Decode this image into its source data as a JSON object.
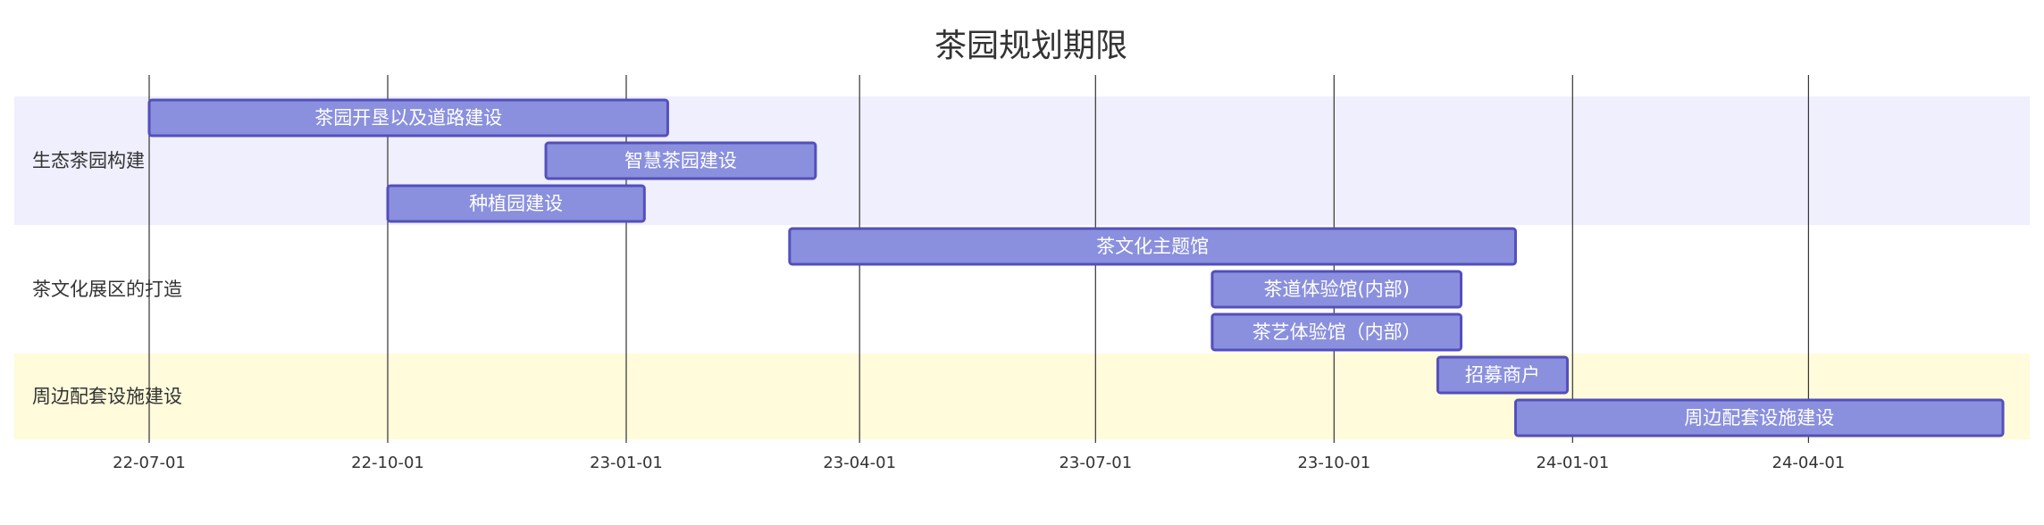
{
  "chart_data": {
    "type": "gantt",
    "title": "茶园规划期限",
    "date_format": "yy-mm-dd",
    "x_range": [
      "2022-06-01",
      "2024-07-01"
    ],
    "ticks": [
      {
        "date": "2022-07-01",
        "label": "22-07-01"
      },
      {
        "date": "2022-10-01",
        "label": "22-10-01"
      },
      {
        "date": "2023-01-01",
        "label": "23-01-01"
      },
      {
        "date": "2023-04-01",
        "label": "23-04-01"
      },
      {
        "date": "2023-07-01",
        "label": "23-07-01"
      },
      {
        "date": "2023-10-01",
        "label": "23-10-01"
      },
      {
        "date": "2024-01-01",
        "label": "24-01-01"
      },
      {
        "date": "2024-04-01",
        "label": "24-04-01"
      }
    ],
    "sections": [
      {
        "name": "生态茶园构建",
        "color": "#efeffd"
      },
      {
        "name": "茶文化展区的打造",
        "color": "#ffffff"
      },
      {
        "name": "周边配套设施建设",
        "color": "#fffbdb"
      }
    ],
    "tasks": [
      {
        "name": "茶园开垦以及道路建设",
        "section": 0,
        "start": "2022-07-01",
        "end": "2023-01-17"
      },
      {
        "name": "智慧茶园建设",
        "section": 0,
        "start": "2022-12-01",
        "end": "2023-03-15"
      },
      {
        "name": "种植园建设",
        "section": 0,
        "start": "2022-10-01",
        "end": "2023-01-08"
      },
      {
        "name": "茶文化主题馆",
        "section": 1,
        "start": "2023-03-05",
        "end": "2023-12-10"
      },
      {
        "name": "茶道体验馆(内部)",
        "section": 1,
        "start": "2023-08-15",
        "end": "2023-11-19"
      },
      {
        "name": "茶艺体验馆（内部）",
        "section": 1,
        "start": "2023-08-15",
        "end": "2023-11-19"
      },
      {
        "name": "招募商户",
        "section": 2,
        "start": "2023-11-10",
        "end": "2023-12-30"
      },
      {
        "name": "周边配套设施建设",
        "section": 2,
        "start": "2023-12-10",
        "end": "2024-06-15"
      }
    ],
    "bar_fill": "#8a90dd",
    "bar_stroke": "#534fbc",
    "grid": true
  }
}
